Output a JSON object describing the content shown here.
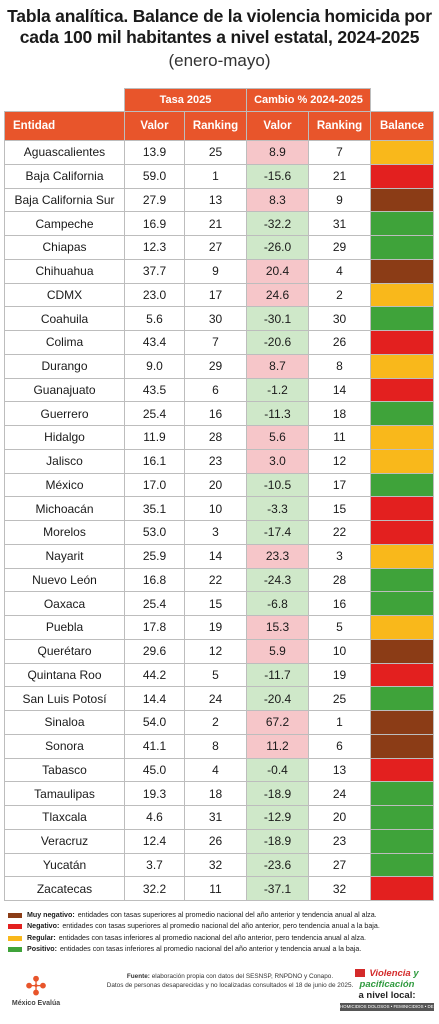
{
  "title": "Tabla analítica. Balance de la violencia homicida por cada 100 mil habitantes a nivel estatal, 2024-2025",
  "subtitle": "(enero-mayo)",
  "colors": {
    "header": "#e8552b",
    "muy_negativo": "#8b3c16",
    "negativo": "#e3201f",
    "regular": "#f9b81b",
    "positivo": "#3fa33a",
    "increase_cell": "#f6c6c9",
    "decrease_cell": "#cfe8c9"
  },
  "table": {
    "group_headers": {
      "tasa": "Tasa 2025",
      "cambio": "Cambio % 2024-2025"
    },
    "columns": [
      "Entidad",
      "Valor",
      "Ranking",
      "Valor",
      "Ranking",
      "Balance"
    ],
    "rows": [
      {
        "entidad": "Aguascalientes",
        "tasa_valor": "13.9",
        "tasa_ranking": "25",
        "cambio_valor": "8.9",
        "cambio_ranking": "7",
        "balance": "regular"
      },
      {
        "entidad": "Baja California",
        "tasa_valor": "59.0",
        "tasa_ranking": "1",
        "cambio_valor": "-15.6",
        "cambio_ranking": "21",
        "balance": "negativo"
      },
      {
        "entidad": "Baja California Sur",
        "tasa_valor": "27.9",
        "tasa_ranking": "13",
        "cambio_valor": "8.3",
        "cambio_ranking": "9",
        "balance": "muy_negativo"
      },
      {
        "entidad": "Campeche",
        "tasa_valor": "16.9",
        "tasa_ranking": "21",
        "cambio_valor": "-32.2",
        "cambio_ranking": "31",
        "balance": "positivo"
      },
      {
        "entidad": "Chiapas",
        "tasa_valor": "12.3",
        "tasa_ranking": "27",
        "cambio_valor": "-26.0",
        "cambio_ranking": "29",
        "balance": "positivo"
      },
      {
        "entidad": "Chihuahua",
        "tasa_valor": "37.7",
        "tasa_ranking": "9",
        "cambio_valor": "20.4",
        "cambio_ranking": "4",
        "balance": "muy_negativo"
      },
      {
        "entidad": "CDMX",
        "tasa_valor": "23.0",
        "tasa_ranking": "17",
        "cambio_valor": "24.6",
        "cambio_ranking": "2",
        "balance": "regular"
      },
      {
        "entidad": "Coahuila",
        "tasa_valor": "5.6",
        "tasa_ranking": "30",
        "cambio_valor": "-30.1",
        "cambio_ranking": "30",
        "balance": "positivo"
      },
      {
        "entidad": "Colima",
        "tasa_valor": "43.4",
        "tasa_ranking": "7",
        "cambio_valor": "-20.6",
        "cambio_ranking": "26",
        "balance": "negativo"
      },
      {
        "entidad": "Durango",
        "tasa_valor": "9.0",
        "tasa_ranking": "29",
        "cambio_valor": "8.7",
        "cambio_ranking": "8",
        "balance": "regular"
      },
      {
        "entidad": "Guanajuato",
        "tasa_valor": "43.5",
        "tasa_ranking": "6",
        "cambio_valor": "-1.2",
        "cambio_ranking": "14",
        "balance": "negativo"
      },
      {
        "entidad": "Guerrero",
        "tasa_valor": "25.4",
        "tasa_ranking": "16",
        "cambio_valor": "-11.3",
        "cambio_ranking": "18",
        "balance": "positivo"
      },
      {
        "entidad": "Hidalgo",
        "tasa_valor": "11.9",
        "tasa_ranking": "28",
        "cambio_valor": "5.6",
        "cambio_ranking": "11",
        "balance": "regular"
      },
      {
        "entidad": "Jalisco",
        "tasa_valor": "16.1",
        "tasa_ranking": "23",
        "cambio_valor": "3.0",
        "cambio_ranking": "12",
        "balance": "regular"
      },
      {
        "entidad": "México",
        "tasa_valor": "17.0",
        "tasa_ranking": "20",
        "cambio_valor": "-10.5",
        "cambio_ranking": "17",
        "balance": "positivo"
      },
      {
        "entidad": "Michoacán",
        "tasa_valor": "35.1",
        "tasa_ranking": "10",
        "cambio_valor": "-3.3",
        "cambio_ranking": "15",
        "balance": "negativo"
      },
      {
        "entidad": "Morelos",
        "tasa_valor": "53.0",
        "tasa_ranking": "3",
        "cambio_valor": "-17.4",
        "cambio_ranking": "22",
        "balance": "negativo"
      },
      {
        "entidad": "Nayarit",
        "tasa_valor": "25.9",
        "tasa_ranking": "14",
        "cambio_valor": "23.3",
        "cambio_ranking": "3",
        "balance": "regular"
      },
      {
        "entidad": "Nuevo León",
        "tasa_valor": "16.8",
        "tasa_ranking": "22",
        "cambio_valor": "-24.3",
        "cambio_ranking": "28",
        "balance": "positivo"
      },
      {
        "entidad": "Oaxaca",
        "tasa_valor": "25.4",
        "tasa_ranking": "15",
        "cambio_valor": "-6.8",
        "cambio_ranking": "16",
        "balance": "positivo"
      },
      {
        "entidad": "Puebla",
        "tasa_valor": "17.8",
        "tasa_ranking": "19",
        "cambio_valor": "15.3",
        "cambio_ranking": "5",
        "balance": "regular"
      },
      {
        "entidad": "Querétaro",
        "tasa_valor": "29.6",
        "tasa_ranking": "12",
        "cambio_valor": "5.9",
        "cambio_ranking": "10",
        "balance": "muy_negativo"
      },
      {
        "entidad": "Quintana Roo",
        "tasa_valor": "44.2",
        "tasa_ranking": "5",
        "cambio_valor": "-11.7",
        "cambio_ranking": "19",
        "balance": "negativo"
      },
      {
        "entidad": "San Luis Potosí",
        "tasa_valor": "14.4",
        "tasa_ranking": "24",
        "cambio_valor": "-20.4",
        "cambio_ranking": "25",
        "balance": "positivo"
      },
      {
        "entidad": "Sinaloa",
        "tasa_valor": "54.0",
        "tasa_ranking": "2",
        "cambio_valor": "67.2",
        "cambio_ranking": "1",
        "balance": "muy_negativo"
      },
      {
        "entidad": "Sonora",
        "tasa_valor": "41.1",
        "tasa_ranking": "8",
        "cambio_valor": "11.2",
        "cambio_ranking": "6",
        "balance": "muy_negativo"
      },
      {
        "entidad": "Tabasco",
        "tasa_valor": "45.0",
        "tasa_ranking": "4",
        "cambio_valor": "-0.4",
        "cambio_ranking": "13",
        "balance": "negativo"
      },
      {
        "entidad": "Tamaulipas",
        "tasa_valor": "19.3",
        "tasa_ranking": "18",
        "cambio_valor": "-18.9",
        "cambio_ranking": "24",
        "balance": "positivo"
      },
      {
        "entidad": "Tlaxcala",
        "tasa_valor": "4.6",
        "tasa_ranking": "31",
        "cambio_valor": "-12.9",
        "cambio_ranking": "20",
        "balance": "positivo"
      },
      {
        "entidad": "Veracruz",
        "tasa_valor": "12.4",
        "tasa_ranking": "26",
        "cambio_valor": "-18.9",
        "cambio_ranking": "23",
        "balance": "positivo"
      },
      {
        "entidad": "Yucatán",
        "tasa_valor": "3.7",
        "tasa_ranking": "32",
        "cambio_valor": "-23.6",
        "cambio_ranking": "27",
        "balance": "positivo"
      },
      {
        "entidad": "Zacatecas",
        "tasa_valor": "32.2",
        "tasa_ranking": "11",
        "cambio_valor": "-37.1",
        "cambio_ranking": "32",
        "balance": "negativo"
      }
    ]
  },
  "legend": [
    {
      "key": "muy_negativo",
      "label": "Muy negativo:",
      "text": "entidades con tasas superiores al promedio nacional del año anterior y tendencia anual al alza."
    },
    {
      "key": "negativo",
      "label": "Negativo:",
      "text": "entidades con tasas superiores al promedio nacional del año anterior, pero tendencia anual a la baja."
    },
    {
      "key": "regular",
      "label": "Regular:",
      "text": "entidades con tasas inferiores al promedio nacional del año anterior, pero tendencia anual al alza."
    },
    {
      "key": "positivo",
      "label": "Positivo:",
      "text": "entidades con tasas inferiores al promedio nacional del año anterior y tendencia anual a la baja."
    }
  ],
  "footer": {
    "fuente_label": "Fuente:",
    "fuente_text": "elaboración propia con datos del SESNSP, RNPDNO y Conapo.",
    "line2": "Datos de personas desaparecidas y no localizadas consultados el 18 de junio de 2025."
  },
  "logo_left": {
    "text": "México Evalúa",
    "icon": "mexico-evalua-logo-icon"
  },
  "logo_right": {
    "line1a": "Violencia",
    "line1b": "y pacificación",
    "line2": "a nivel local:",
    "bar": "HOMICIDIOS DOLOSOS • FEMINICIDIOS • DESAPARECIDOS",
    "icon": "report-logo-icon"
  }
}
